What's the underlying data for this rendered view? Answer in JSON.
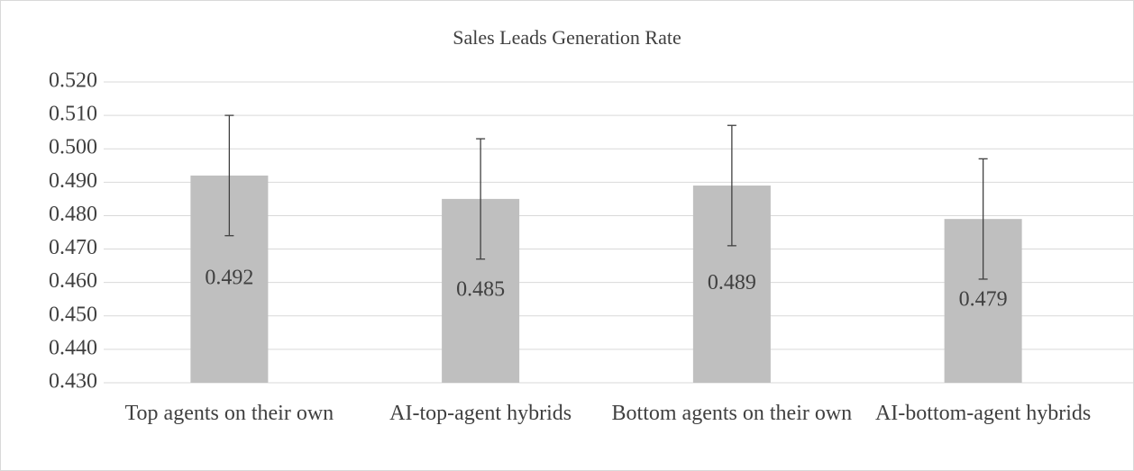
{
  "chart_data": {
    "type": "bar",
    "title": "Sales Leads Generation Rate",
    "categories": [
      "Top agents on their own",
      "AI-top-agent hybrids",
      "Bottom agents on their own",
      "AI-bottom-agent hybrids"
    ],
    "values": [
      0.492,
      0.485,
      0.489,
      0.479
    ],
    "errors": [
      0.018,
      0.018,
      0.018,
      0.018
    ],
    "color": "#bfbfbf",
    "ylim": [
      0.43,
      0.52
    ],
    "yticks": [
      {
        "value": 0.43,
        "label": "0.430"
      },
      {
        "value": 0.44,
        "label": "0.440"
      },
      {
        "value": 0.45,
        "label": "0.450"
      },
      {
        "value": 0.46,
        "label": "0.460"
      },
      {
        "value": 0.47,
        "label": "0.470"
      },
      {
        "value": 0.48,
        "label": "0.480"
      },
      {
        "value": 0.49,
        "label": "0.490"
      },
      {
        "value": 0.5,
        "label": "0.500"
      },
      {
        "value": 0.51,
        "label": "0.510"
      },
      {
        "value": 0.52,
        "label": "0.520"
      }
    ],
    "grid": true
  }
}
